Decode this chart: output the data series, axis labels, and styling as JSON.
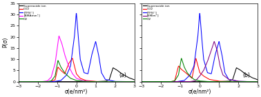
{
  "panel_a": {
    "label": "(a)",
    "legend_entries": [
      "Superoxide ion",
      "CO2",
      "[TFSI⁻]",
      "[BMAmm⁺]",
      "O2"
    ],
    "colors": [
      "black",
      "red",
      "blue",
      "magenta",
      "green"
    ],
    "curves": {
      "superoxide": {
        "color": "black",
        "x": [
          -3.0,
          -2.8,
          -2.5,
          -2.0,
          -1.5,
          -1.0,
          -0.5,
          0.0,
          0.5,
          1.0,
          1.5,
          1.7,
          1.9,
          2.1,
          2.3,
          2.5,
          2.7,
          2.9,
          3.0
        ],
        "y": [
          0.0,
          0.0,
          0.0,
          0.0,
          0.0,
          0.0,
          0.0,
          0.0,
          0.0,
          0.0,
          0.2,
          0.8,
          6.2,
          5.2,
          3.8,
          2.8,
          1.8,
          1.2,
          0.8
        ]
      },
      "CO2": {
        "color": "red",
        "x": [
          -3.0,
          -1.8,
          -1.5,
          -1.3,
          -1.1,
          -0.95,
          -0.8,
          -0.6,
          -0.4,
          -0.2,
          0.0,
          0.2,
          0.5,
          1.0,
          1.5,
          2.0,
          3.0
        ],
        "y": [
          0.0,
          0.0,
          0.0,
          0.2,
          0.8,
          6.5,
          5.0,
          3.5,
          8.0,
          10.5,
          3.5,
          1.5,
          0.5,
          0.1,
          0.0,
          0.0,
          0.0
        ]
      },
      "TFSI": {
        "color": "blue",
        "x": [
          -3.0,
          -1.5,
          -1.2,
          -0.8,
          -0.5,
          -0.3,
          -0.1,
          0.0,
          0.1,
          0.2,
          0.4,
          0.6,
          0.8,
          1.0,
          1.15,
          1.3,
          1.5,
          2.0,
          3.0
        ],
        "y": [
          0.0,
          0.0,
          0.0,
          0.5,
          3.0,
          7.0,
          20.0,
          31.0,
          20.0,
          10.0,
          4.0,
          3.5,
          12.0,
          18.0,
          12.0,
          4.0,
          1.0,
          0.1,
          0.0
        ]
      },
      "BMAmm": {
        "color": "magenta",
        "x": [
          -3.0,
          -1.8,
          -1.5,
          -1.3,
          -1.1,
          -0.9,
          -0.75,
          -0.6,
          -0.4,
          -0.2,
          0.0,
          0.3,
          0.6,
          1.0,
          1.5,
          3.0
        ],
        "y": [
          0.0,
          0.0,
          0.3,
          2.0,
          8.0,
          20.5,
          17.0,
          12.0,
          7.0,
          3.5,
          1.5,
          0.5,
          0.2,
          0.0,
          0.0,
          0.0
        ]
      },
      "O2": {
        "color": "green",
        "x": [
          -3.0,
          -1.5,
          -1.3,
          -1.1,
          -0.95,
          -0.8,
          -0.65,
          -0.5,
          -0.3,
          0.0,
          0.3,
          0.6,
          1.0,
          1.5,
          3.0
        ],
        "y": [
          0.0,
          0.0,
          0.3,
          2.5,
          9.5,
          6.5,
          4.5,
          3.0,
          1.5,
          0.5,
          0.2,
          0.1,
          0.0,
          0.0,
          0.0
        ]
      }
    }
  },
  "panel_b": {
    "label": "(b)",
    "legend_entries": [
      "Superoxide ion",
      "CO2",
      "[TFSI⁻]",
      "[EMIm⁺]",
      "O2"
    ],
    "colors": [
      "black",
      "red",
      "blue",
      "purple",
      "green"
    ],
    "curves": {
      "superoxide": {
        "color": "black",
        "x": [
          -3.0,
          -2.8,
          -2.5,
          -2.0,
          -1.5,
          -1.0,
          -0.5,
          0.0,
          0.5,
          1.0,
          1.5,
          1.7,
          1.9,
          2.1,
          2.3,
          2.5,
          2.7,
          2.9,
          3.0
        ],
        "y": [
          0.0,
          0.0,
          0.0,
          0.0,
          0.0,
          0.0,
          0.0,
          0.0,
          0.0,
          0.0,
          0.2,
          0.8,
          6.2,
          5.2,
          3.8,
          2.8,
          1.8,
          1.2,
          0.8
        ]
      },
      "CO2": {
        "color": "red",
        "x": [
          -3.0,
          -1.5,
          -1.3,
          -1.1,
          -0.95,
          -0.8,
          -0.6,
          -0.4,
          -0.2,
          0.0,
          0.2,
          0.5,
          1.0,
          1.5,
          2.0,
          3.0
        ],
        "y": [
          0.0,
          0.0,
          0.3,
          7.0,
          5.5,
          4.5,
          3.0,
          1.5,
          10.5,
          4.0,
          2.5,
          1.0,
          0.2,
          0.0,
          0.0,
          0.0
        ]
      },
      "TFSI": {
        "color": "blue",
        "x": [
          -3.0,
          -1.5,
          -1.2,
          -0.8,
          -0.5,
          -0.3,
          -0.1,
          0.0,
          0.1,
          0.2,
          0.4,
          0.6,
          0.8,
          1.0,
          1.15,
          1.3,
          1.5,
          2.0,
          3.0
        ],
        "y": [
          0.0,
          0.0,
          0.0,
          0.5,
          3.0,
          7.0,
          20.0,
          31.0,
          20.0,
          10.0,
          4.0,
          3.5,
          12.0,
          18.0,
          12.0,
          4.0,
          1.0,
          0.1,
          0.0
        ]
      },
      "EMIm": {
        "color": "purple",
        "x": [
          -3.0,
          -0.5,
          -0.2,
          0.0,
          0.2,
          0.4,
          0.6,
          0.75,
          0.9,
          1.05,
          1.2,
          1.5,
          2.0,
          2.5,
          3.0
        ],
        "y": [
          0.0,
          0.0,
          0.5,
          2.5,
          5.0,
          9.0,
          14.0,
          18.0,
          14.0,
          7.0,
          3.0,
          1.0,
          0.2,
          0.0,
          0.0
        ]
      },
      "O2": {
        "color": "green",
        "x": [
          -3.0,
          -1.5,
          -1.3,
          -1.1,
          -0.95,
          -0.8,
          -0.65,
          -0.5,
          -0.3,
          0.0,
          0.3,
          0.6,
          1.0,
          1.5,
          3.0
        ],
        "y": [
          0.0,
          0.0,
          0.3,
          3.0,
          10.5,
          6.5,
          4.0,
          2.5,
          1.0,
          0.3,
          0.1,
          0.0,
          0.0,
          0.0,
          0.0
        ]
      }
    }
  },
  "ylim": [
    0,
    35
  ],
  "xlim": [
    -3,
    3
  ],
  "yticks": [
    0,
    5,
    10,
    15,
    20,
    25,
    30,
    35
  ],
  "xticks": [
    -3,
    -2,
    -1,
    0,
    1,
    2,
    3
  ],
  "xlabel": "σ(e/nm²)",
  "ylabel": "P(σ)"
}
